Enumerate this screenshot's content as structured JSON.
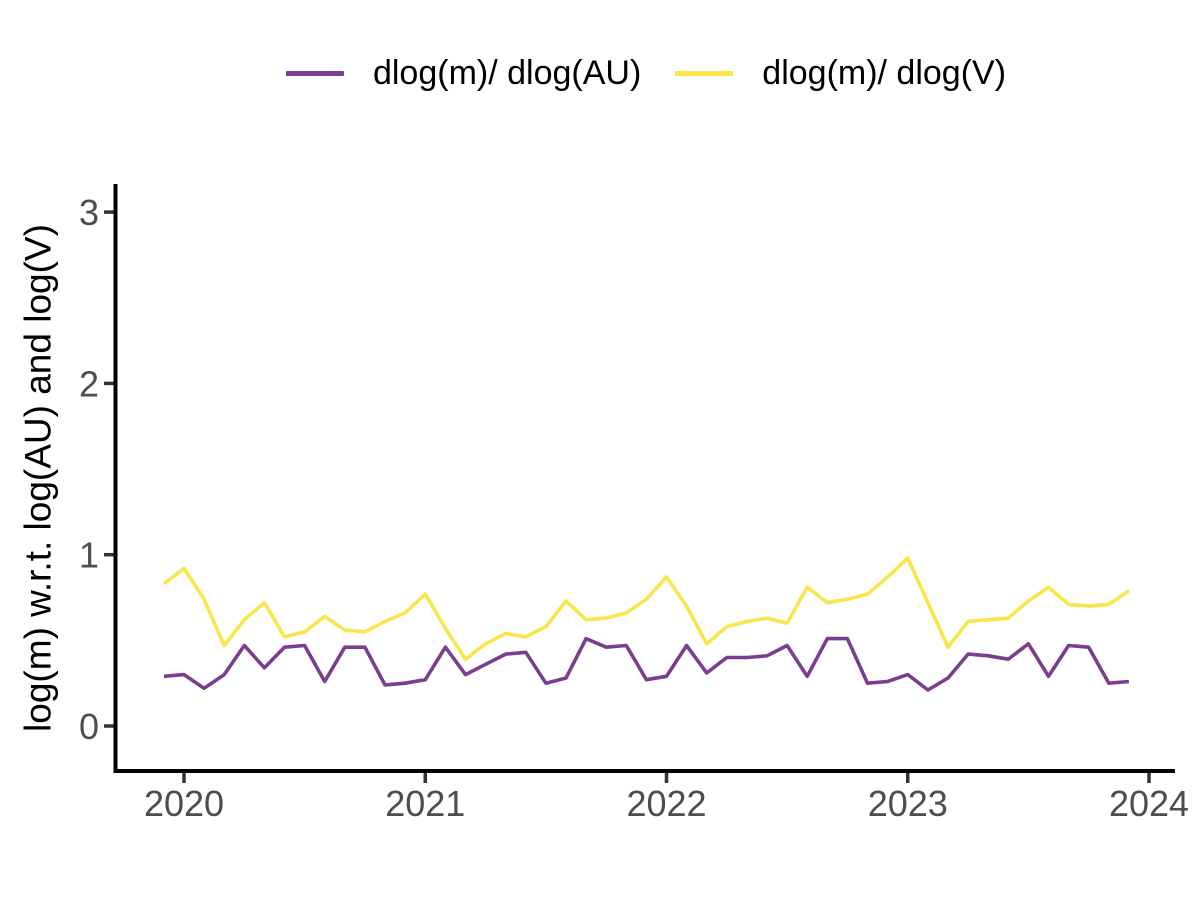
{
  "figure": {
    "background": "#FFFFFF"
  },
  "legend": {
    "items": [
      {
        "label": "dlog(m)/ dlog(AU)",
        "color": "#7B3E8F"
      },
      {
        "label": "dlog(m)/ dlog(V)",
        "color": "#F9E64C"
      }
    ]
  },
  "axis_style": {
    "axis_line_color": "#000000",
    "tick_mark_color": "#333333",
    "tick_label_color": "#4D4D4D"
  },
  "chart_data": {
    "type": "line",
    "title": "",
    "ylabel": "log(m) w.r.t. log(AU) and log(V)",
    "x_ticks": [
      2020,
      2021,
      2022,
      2023,
      2024
    ],
    "y_ticks": [
      0,
      1,
      2,
      3
    ],
    "xlim": [
      2019.72,
      2024.11
    ],
    "ylim": [
      -0.26,
      3.15
    ],
    "grid": false,
    "legend_position": "top-center",
    "x_months": [
      "2019-12",
      "2020-01",
      "2020-02",
      "2020-03",
      "2020-04",
      "2020-05",
      "2020-06",
      "2020-07",
      "2020-08",
      "2020-09",
      "2020-10",
      "2020-11",
      "2020-12",
      "2021-01",
      "2021-02",
      "2021-03",
      "2021-04",
      "2021-05",
      "2021-06",
      "2021-07",
      "2021-08",
      "2021-09",
      "2021-10",
      "2021-11",
      "2021-12",
      "2022-01",
      "2022-02",
      "2022-03",
      "2022-04",
      "2022-05",
      "2022-06",
      "2022-07",
      "2022-08",
      "2022-09",
      "2022-10",
      "2022-11",
      "2022-12",
      "2023-01",
      "2023-02",
      "2023-03",
      "2023-04",
      "2023-05",
      "2023-06",
      "2023-07",
      "2023-08",
      "2023-09",
      "2023-10",
      "2023-11",
      "2023-12"
    ],
    "series": [
      {
        "name": "dlog(m)/ dlog(AU)",
        "color": "#7B3E8F",
        "values": [
          0.29,
          0.3,
          0.22,
          0.3,
          0.47,
          0.34,
          0.46,
          0.47,
          0.26,
          0.46,
          0.46,
          0.24,
          0.25,
          0.27,
          0.46,
          0.3,
          0.36,
          0.42,
          0.43,
          0.25,
          0.28,
          0.51,
          0.46,
          0.47,
          0.27,
          0.29,
          0.47,
          0.31,
          0.4,
          0.4,
          0.41,
          0.47,
          0.29,
          0.51,
          0.51,
          0.25,
          0.26,
          0.3,
          0.21,
          0.28,
          0.42,
          0.41,
          0.39,
          0.48,
          0.29,
          0.47,
          0.46,
          0.25,
          0.26
        ]
      },
      {
        "name": "dlog(m)/ dlog(V)",
        "color": "#F9E64C",
        "values": [
          0.83,
          0.92,
          0.74,
          0.47,
          0.62,
          0.72,
          0.52,
          0.55,
          0.64,
          0.56,
          0.55,
          0.61,
          0.66,
          0.77,
          0.57,
          0.39,
          0.48,
          0.54,
          0.52,
          0.58,
          0.73,
          0.62,
          0.63,
          0.66,
          0.74,
          0.87,
          0.7,
          0.48,
          0.58,
          0.61,
          0.63,
          0.6,
          0.81,
          0.72,
          0.74,
          0.77,
          0.87,
          0.98,
          0.72,
          0.46,
          0.61,
          0.62,
          0.63,
          0.73,
          0.81,
          0.71,
          0.7,
          0.71,
          0.79
        ]
      }
    ]
  }
}
